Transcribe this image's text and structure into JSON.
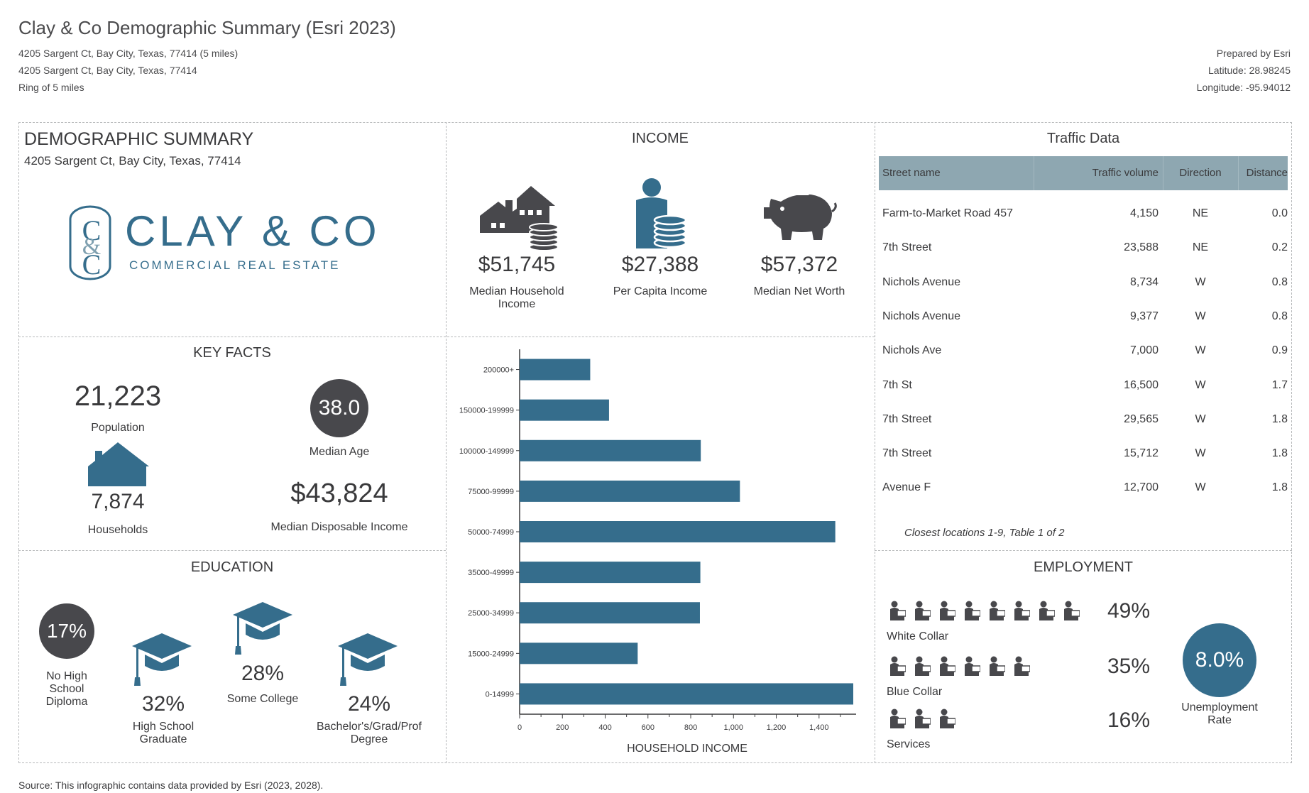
{
  "header": {
    "title": "Clay & Co Demographic Summary (Esri 2023)",
    "line1": "4205 Sargent Ct, Bay City, Texas, 77414 (5 miles)",
    "line2": "4205 Sargent Ct, Bay City, Texas, 77414",
    "line3": "Ring of 5 miles",
    "prepared": "Prepared by Esri",
    "latitude": "Latitude: 28.98245",
    "longitude": "Longitude: -95.94012"
  },
  "demographic": {
    "title": "DEMOGRAPHIC SUMMARY",
    "address": "4205 Sargent Ct, Bay City, Texas, 77414",
    "logo_main": "CLAY & CO",
    "logo_sub": "COMMERCIAL REAL ESTATE"
  },
  "income": {
    "title": "INCOME",
    "items": [
      {
        "value": "$51,745",
        "label1": "Median Household",
        "label2": "Income",
        "icon": "house-coins-icon"
      },
      {
        "value": "$27,388",
        "label1": "Per Capita Income",
        "label2": "",
        "icon": "person-coins-icon"
      },
      {
        "value": "$57,372",
        "label1": "Median Net Worth",
        "label2": "",
        "icon": "piggy-bank-icon"
      }
    ]
  },
  "traffic": {
    "title": "Traffic Data",
    "columns": [
      "Street name",
      "Traffic volume",
      "Direction",
      "Distance"
    ],
    "rows": [
      [
        "Farm-to-Market Road 457",
        "4,150",
        "NE",
        "0.0"
      ],
      [
        "7th Street",
        "23,588",
        "NE",
        "0.2"
      ],
      [
        "Nichols Avenue",
        "8,734",
        "W",
        "0.8"
      ],
      [
        "Nichols Avenue",
        "9,377",
        "W",
        "0.8"
      ],
      [
        "Nichols Ave",
        "7,000",
        "W",
        "0.9"
      ],
      [
        "7th St",
        "16,500",
        "W",
        "1.7"
      ],
      [
        "7th Street",
        "29,565",
        "W",
        "1.8"
      ],
      [
        "7th Street",
        "15,712",
        "W",
        "1.8"
      ],
      [
        "Avenue F",
        "12,700",
        "W",
        "1.8"
      ]
    ],
    "footnote": "Closest locations 1-9, Table 1 of 2"
  },
  "key_facts": {
    "title": "KEY FACTS",
    "population": "21,223",
    "population_label": "Population",
    "median_age": "38.0",
    "median_age_label": "Median Age",
    "households": "7,874",
    "households_label": "Households",
    "disposable_income": "$43,824",
    "disposable_income_label": "Median Disposable Income"
  },
  "education": {
    "title": "EDUCATION",
    "no_hs": "17%",
    "no_hs_label": [
      "No High",
      "School",
      "Diploma"
    ],
    "hs_grad": "32%",
    "hs_grad_label": [
      "High School",
      "Graduate"
    ],
    "some_college": "28%",
    "some_college_label": [
      "Some College"
    ],
    "bachelors": "24%",
    "bachelors_label": [
      "Bachelor's/Grad/Prof",
      "Degree"
    ]
  },
  "employment": {
    "title": "EMPLOYMENT",
    "white_collar": "49%",
    "white_collar_label": "White Collar",
    "blue_collar": "35%",
    "blue_collar_label": "Blue Collar",
    "services": "16%",
    "services_label": "Services",
    "unemployment": "8.0%",
    "unemployment_label1": "Unemployment",
    "unemployment_label2": "Rate"
  },
  "chart_data": {
    "type": "bar",
    "orientation": "horizontal",
    "title": "",
    "xlabel": "HOUSEHOLD INCOME",
    "ylabel": "",
    "categories": [
      "200000+",
      "150000-199999",
      "100000-149999",
      "75000-99999",
      "50000-74999",
      "35000-49999",
      "25000-34999",
      "15000-24999",
      "0-14999"
    ],
    "values": [
      330,
      418,
      847,
      1030,
      1476,
      845,
      843,
      552,
      1560
    ],
    "xlim": [
      0,
      1560
    ],
    "xticks": [
      "0",
      "200",
      "400",
      "600",
      "800",
      "1,000",
      "1,200",
      "1,400"
    ],
    "xtick_values": [
      0,
      200,
      400,
      600,
      800,
      1000,
      1200,
      1400
    ],
    "color": "#356d8c",
    "grid": false
  },
  "footer": {
    "source": "Source: This infographic contains data provided by Esri (2023, 2028)."
  },
  "colors": {
    "accent": "#356d8c",
    "dark": "#48484c",
    "table_header": "#8ea7b1"
  }
}
